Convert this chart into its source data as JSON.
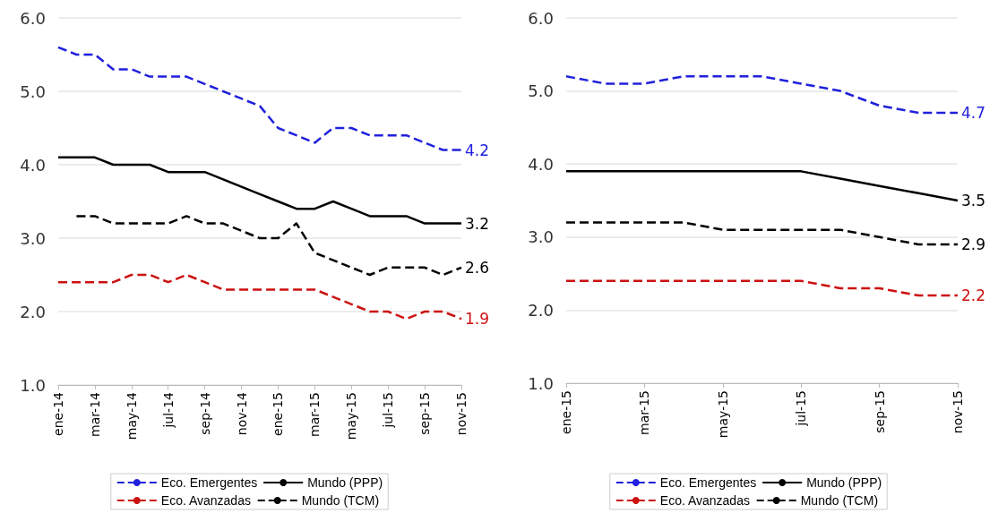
{
  "chart_data": [
    {
      "type": "line",
      "categories": [
        "ene-14",
        null,
        "mar-14",
        null,
        "may-14",
        null,
        "jul-14",
        null,
        "sep-14",
        null,
        "nov-14",
        null,
        "ene-15",
        null,
        "mar-15",
        null,
        "may-15",
        null,
        "jul-15",
        null,
        "sep-15",
        null,
        "nov-15"
      ],
      "series": [
        {
          "name": "Eco. Emergentes",
          "color": "#2020dd",
          "line_style": "dashed",
          "values": [
            5.6,
            5.5,
            5.5,
            5.3,
            5.3,
            5.2,
            5.2,
            5.2,
            5.1,
            5.0,
            4.9,
            4.8,
            4.5,
            4.4,
            4.3,
            4.5,
            4.5,
            4.4,
            4.4,
            4.4,
            4.3,
            4.2,
            4.2
          ],
          "value_labels": [
            null,
            null,
            null,
            null,
            null,
            null,
            null,
            null,
            null,
            null,
            null,
            null,
            null,
            null,
            null,
            null,
            null,
            null,
            null,
            null,
            null,
            null,
            "4.2"
          ]
        },
        {
          "name": "Mundo (PPP)",
          "color": "#000000",
          "line_style": "solid",
          "values": [
            4.1,
            4.1,
            4.1,
            4.0,
            4.0,
            4.0,
            3.9,
            3.9,
            3.9,
            3.8,
            3.7,
            3.6,
            3.5,
            3.4,
            3.4,
            3.5,
            3.4,
            3.3,
            3.3,
            3.3,
            3.2,
            3.2,
            3.2
          ],
          "value_labels": [
            null,
            null,
            null,
            null,
            null,
            null,
            null,
            null,
            null,
            null,
            null,
            null,
            null,
            null,
            null,
            null,
            null,
            null,
            null,
            null,
            null,
            null,
            "3.2"
          ]
        },
        {
          "name": "Eco. Avanzadas",
          "color": "#cc1111",
          "line_style": "dashed",
          "values": [
            2.4,
            2.4,
            2.4,
            2.4,
            2.5,
            2.5,
            2.4,
            2.5,
            2.4,
            2.3,
            2.3,
            2.3,
            2.3,
            2.3,
            2.3,
            2.2,
            2.1,
            2.0,
            2.0,
            1.9,
            2.0,
            2.0,
            1.9
          ],
          "value_labels": [
            null,
            null,
            null,
            null,
            null,
            null,
            null,
            null,
            null,
            null,
            null,
            null,
            null,
            null,
            null,
            null,
            null,
            null,
            null,
            null,
            null,
            null,
            "1.9"
          ]
        },
        {
          "name": "Mundo (TCM)",
          "color": "#000000",
          "line_style": "dashed",
          "values": [
            null,
            3.3,
            3.3,
            3.2,
            3.2,
            3.2,
            3.2,
            3.3,
            3.2,
            3.2,
            3.1,
            3.0,
            3.0,
            3.2,
            2.8,
            2.7,
            2.6,
            2.5,
            2.6,
            2.6,
            2.6,
            2.5,
            2.6
          ],
          "value_labels": [
            null,
            null,
            null,
            null,
            null,
            null,
            null,
            null,
            null,
            null,
            null,
            null,
            null,
            null,
            null,
            null,
            null,
            null,
            null,
            null,
            null,
            null,
            "2.6"
          ]
        }
      ],
      "ylim": [
        1,
        6
      ],
      "yticks": [
        {
          "value": 1,
          "label": "1.0"
        },
        {
          "value": 2,
          "label": "2.0"
        },
        {
          "value": 3,
          "label": "3.0"
        },
        {
          "value": 4,
          "label": "4.0"
        },
        {
          "value": 5,
          "label": "5.0"
        },
        {
          "value": 6,
          "label": "6.0"
        }
      ],
      "grid": "y",
      "legend": "bottom",
      "marker": "none"
    },
    {
      "type": "line",
      "categories": [
        "ene-15",
        null,
        "mar-15",
        null,
        "may-15",
        null,
        "jul-15",
        null,
        "sep-15",
        null,
        "nov-15"
      ],
      "series": [
        {
          "name": "Eco. Emergentes",
          "color": "#2020dd",
          "line_style": "dashed",
          "values": [
            5.2,
            5.1,
            5.1,
            5.2,
            5.2,
            5.2,
            5.1,
            5.0,
            4.8,
            4.7,
            4.7
          ],
          "value_labels": [
            null,
            null,
            null,
            null,
            null,
            null,
            null,
            null,
            null,
            null,
            "4.7"
          ]
        },
        {
          "name": "Mundo (PPP)",
          "color": "#000000",
          "line_style": "solid",
          "values": [
            3.9,
            3.9,
            3.9,
            3.9,
            3.9,
            3.9,
            3.9,
            3.8,
            3.7,
            3.6,
            3.5
          ],
          "value_labels": [
            null,
            null,
            null,
            null,
            null,
            null,
            null,
            null,
            null,
            null,
            "3.5"
          ]
        },
        {
          "name": "Eco. Avanzadas",
          "color": "#cc1111",
          "line_style": "dashed",
          "values": [
            2.4,
            2.4,
            2.4,
            2.4,
            2.4,
            2.4,
            2.4,
            2.3,
            2.3,
            2.2,
            2.2
          ],
          "value_labels": [
            null,
            null,
            null,
            null,
            null,
            null,
            null,
            null,
            null,
            null,
            "2.2"
          ]
        },
        {
          "name": "Mundo (TCM)",
          "color": "#000000",
          "line_style": "dashed",
          "values": [
            3.2,
            3.2,
            3.2,
            3.2,
            3.1,
            3.1,
            3.1,
            3.1,
            3.0,
            2.9,
            2.9
          ],
          "value_labels": [
            null,
            null,
            null,
            null,
            null,
            null,
            null,
            null,
            null,
            null,
            "2.9"
          ]
        }
      ],
      "ylim": [
        1,
        6
      ],
      "yticks": [
        {
          "value": 1,
          "label": "1.0"
        },
        {
          "value": 2,
          "label": "2.0"
        },
        {
          "value": 3,
          "label": "3.0"
        },
        {
          "value": 4,
          "label": "4.0"
        },
        {
          "value": 5,
          "label": "5.0"
        },
        {
          "value": 6,
          "label": "6.0"
        }
      ],
      "grid": "y",
      "legend": "bottom",
      "marker": "none"
    }
  ]
}
